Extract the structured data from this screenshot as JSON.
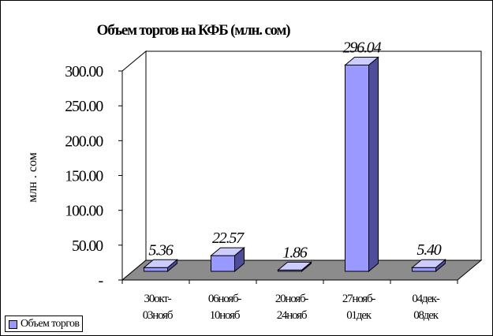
{
  "chart_data": {
    "type": "bar",
    "title": "Объем торгов на КФБ (млн. сом)",
    "ylabel": "млн . сом",
    "xlabel": "",
    "categories": [
      [
        "30окт-",
        "03нояб"
      ],
      [
        "06нояб-",
        "10нояб"
      ],
      [
        "20нояб-",
        "24нояб"
      ],
      [
        "27нояб-",
        "01дек"
      ],
      [
        "04дек-",
        "08дек"
      ]
    ],
    "series": [
      {
        "name": "Объем торгов",
        "values": [
          5.36,
          22.57,
          1.86,
          296.04,
          5.4
        ],
        "labels": [
          "5.36",
          "22.57",
          "1.86",
          "296.04",
          "5.40"
        ]
      }
    ],
    "ylim": [
      0,
      300
    ],
    "yticks": [
      "-",
      "50.00",
      "100.00",
      "150.00",
      "200.00",
      "250.00",
      "300.00"
    ],
    "legend": "bottom-left",
    "grid": false,
    "three_d": true,
    "colors": {
      "bar_front": "#9999ff",
      "bar_side": "#4d4d99",
      "bar_top": "#ccccff",
      "floor": "#8c8c8c",
      "outline": "#000000"
    }
  }
}
